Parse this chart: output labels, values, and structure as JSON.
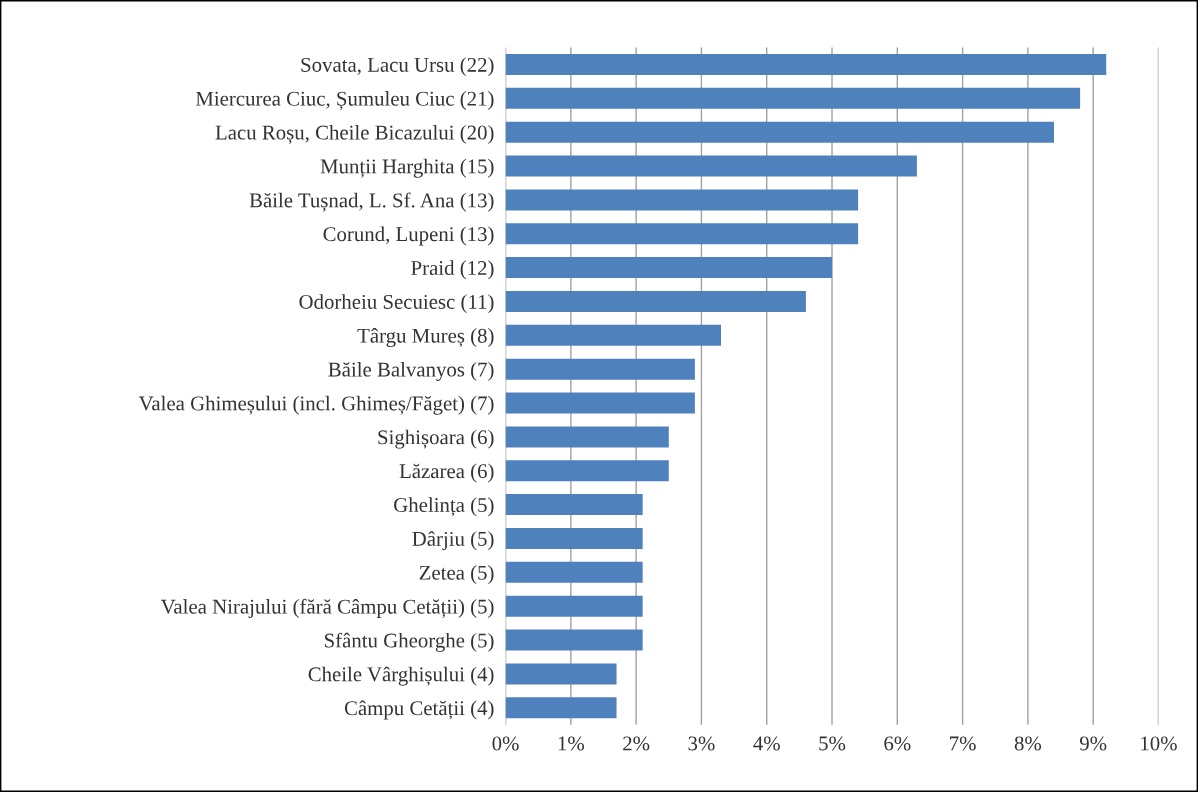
{
  "chart_data": {
    "type": "bar",
    "orientation": "horizontal",
    "categories": [
      "Sovata, Lacu Ursu (22)",
      "Miercurea Ciuc, Șumuleu Ciuc (21)",
      "Lacu Roșu, Cheile Bicazului (20)",
      "Munții Harghita (15)",
      "Băile Tușnad, L. Sf. Ana (13)",
      "Corund, Lupeni (13)",
      "Praid (12)",
      "Odorheiu Secuiesc (11)",
      "Târgu Mureș (8)",
      "Băile Balvanyos (7)",
      "Valea Ghimeșului (incl. Ghimeș/Făget) (7)",
      "Sighișoara (6)",
      "Lăzarea (6)",
      "Ghelința (5)",
      "Dârjiu (5)",
      "Zetea (5)",
      "Valea Nirajului (fără Câmpu Cetății) (5)",
      "Sfântu Gheorghe (5)",
      "Cheile Vârghișului (4)",
      "Câmpu Cetății (4)"
    ],
    "values": [
      9.2,
      8.8,
      8.4,
      6.3,
      5.4,
      5.4,
      5.0,
      4.6,
      3.3,
      2.9,
      2.9,
      2.5,
      2.5,
      2.1,
      2.1,
      2.1,
      2.1,
      2.1,
      1.7,
      1.7
    ],
    "color": "#4f81bd",
    "xlim": [
      0,
      10
    ],
    "xticks": [
      {
        "value": 0,
        "label": "0%"
      },
      {
        "value": 1,
        "label": "1%"
      },
      {
        "value": 2,
        "label": "2%"
      },
      {
        "value": 3,
        "label": "3%"
      },
      {
        "value": 4,
        "label": "4%"
      },
      {
        "value": 5,
        "label": "5%"
      },
      {
        "value": 6,
        "label": "6%"
      },
      {
        "value": 7,
        "label": "7%"
      },
      {
        "value": 8,
        "label": "8%"
      },
      {
        "value": 9,
        "label": "9%"
      },
      {
        "value": 10,
        "label": "10%"
      }
    ],
    "grid": "x",
    "legend": false
  }
}
